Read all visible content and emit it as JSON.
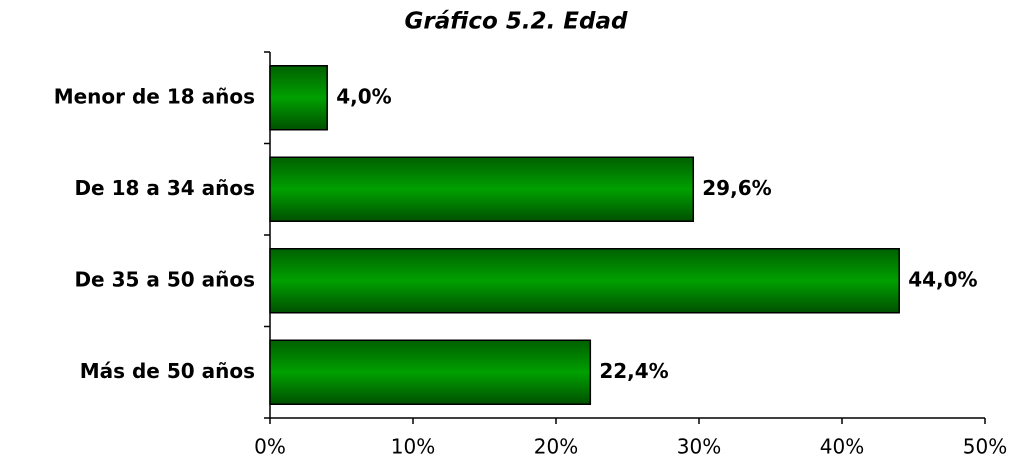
{
  "chart_data": {
    "type": "hbar",
    "title": "Gráfico 5.2. Edad",
    "categories": [
      "Menor de 18 años",
      "De 18 a 34 años",
      "De 35 a 50 años",
      "Más de 50 años"
    ],
    "values": [
      4.0,
      29.6,
      44.0,
      22.4
    ],
    "value_labels": [
      "4,0%",
      "29,6%",
      "44,0%",
      "22,4%"
    ],
    "color": "#008000",
    "xlim": [
      0,
      50
    ],
    "xticks": [
      {
        "value": 0,
        "label": "0%"
      },
      {
        "value": 10,
        "label": "10%"
      },
      {
        "value": 20,
        "label": "20%"
      },
      {
        "value": 30,
        "label": "30%"
      },
      {
        "value": 40,
        "label": "40%"
      },
      {
        "value": 50,
        "label": "50%"
      }
    ]
  }
}
